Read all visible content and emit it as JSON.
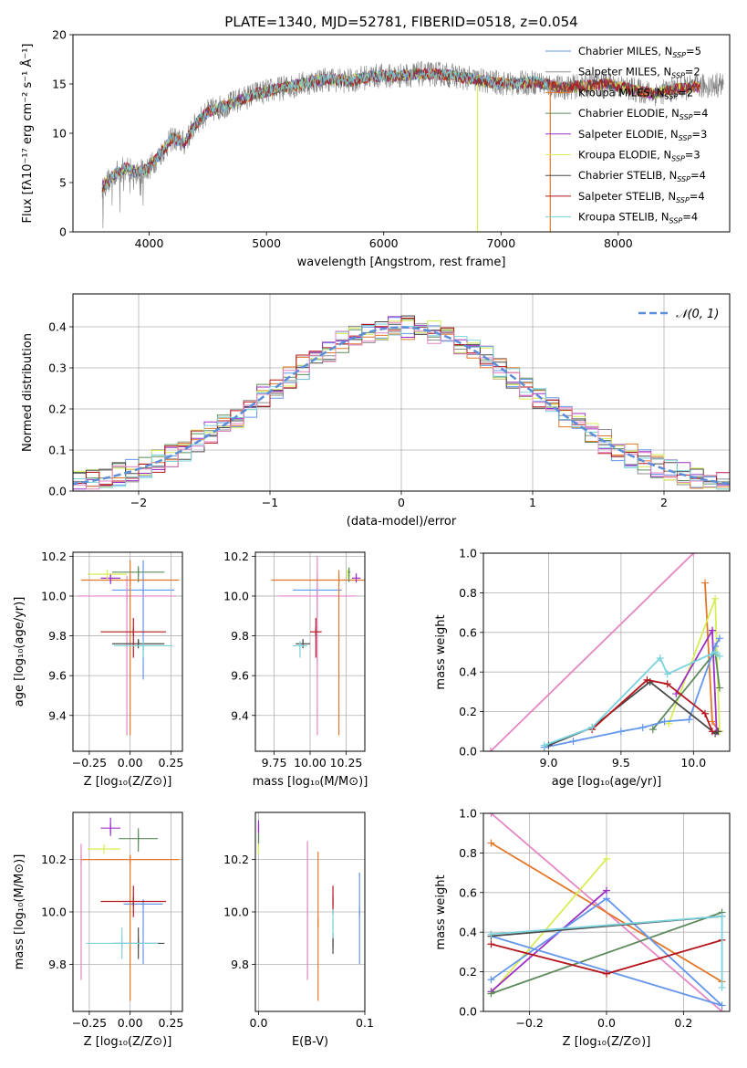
{
  "figure_title": "PLATE=1340, MJD=52781, FIBERID=0518, z=0.054",
  "chart_data": [
    {
      "id": "spectrum",
      "type": "line",
      "xlabel": "wavelength [Angstrom, rest frame]",
      "ylabel": "Flux [fλ10⁻¹⁷ erg cm⁻² s⁻¹ Å⁻¹]",
      "xlim": [
        3350,
        8950
      ],
      "ylim": [
        0,
        20
      ],
      "xticks": [
        4000,
        5000,
        6000,
        7000,
        8000
      ],
      "yticks": [
        0,
        5,
        10,
        15,
        20
      ],
      "legend_position": "top-right",
      "data_curve": {
        "color": "#808080",
        "x": [
          3600,
          3700,
          3800,
          3900,
          4000,
          4100,
          4200,
          4300,
          4400,
          4500,
          4700,
          4900,
          5100,
          5300,
          5500,
          5700,
          5900,
          6100,
          6300,
          6500,
          6700,
          6900,
          7100,
          7300,
          7500,
          7700,
          7900,
          8100,
          8300,
          8500,
          8900
        ],
        "y": [
          4.5,
          5.8,
          6.5,
          6.0,
          6.5,
          8.0,
          9.5,
          9.0,
          11.0,
          12.2,
          13.0,
          14.0,
          14.5,
          15.0,
          15.5,
          15.3,
          15.8,
          15.8,
          16.0,
          16.0,
          15.6,
          15.2,
          15.0,
          15.2,
          14.6,
          14.8,
          15.0,
          14.5,
          14.0,
          14.5,
          15.0
        ]
      },
      "series": [
        {
          "name": "Chabrier MILES, N$_{SSP}$=5",
          "color": "#6495ed"
        },
        {
          "name": "Salpeter MILES, N$_{SSP}$=2",
          "color": "#8e8e8e"
        },
        {
          "name": "Kroupa MILES, N$_{SSP}$=2",
          "color": "#e2772a"
        },
        {
          "name": "Chabrier ELODIE, N$_{SSP}$=4",
          "color": "#5c8a5c"
        },
        {
          "name": "Salpeter ELODIE, N$_{SSP}$=3",
          "color": "#9b30c6"
        },
        {
          "name": "Kroupa ELODIE, N$_{SSP}$=3",
          "color": "#d8ec54"
        },
        {
          "name": "Chabrier STELIB, N$_{SSP}$=4",
          "color": "#4a4a4a"
        },
        {
          "name": "Salpeter STELIB, N$_{SSP}$=4",
          "color": "#b5161d"
        },
        {
          "name": "Kroupa STELIB, N$_{SSP}$=4",
          "color": "#7ad3dc"
        }
      ]
    },
    {
      "id": "residuals",
      "type": "line",
      "xlabel": "(data-model)/error",
      "ylabel": "Normed distribution",
      "xlim": [
        -2.5,
        2.5
      ],
      "ylim": [
        0,
        0.48
      ],
      "xticks": [
        -2,
        -1,
        0,
        1,
        2
      ],
      "yticks": [
        0.0,
        0.1,
        0.2,
        0.3,
        0.4
      ],
      "grid": true,
      "legend_position": "top-right",
      "gaussian": {
        "name": "𝒩(0, 1)",
        "mu": 0,
        "sigma": 1,
        "color": "#5b8dd9"
      }
    },
    {
      "id": "age_vs_Z",
      "type": "scatter",
      "xlabel": "Z [log₁₀(Z/Z⊙)]",
      "ylabel": "age  [log₁₀(age/yr)]",
      "xlim": [
        -0.35,
        0.32
      ],
      "ylim": [
        9.22,
        10.22
      ],
      "xticks": [
        -0.25,
        0.0,
        0.25
      ],
      "yticks": [
        9.4,
        9.6,
        9.8,
        10.0,
        10.2
      ],
      "grid": true,
      "points": [
        {
          "x": 0.08,
          "y": 10.03,
          "xerr": 0.19,
          "yerr": [
            0.45,
            0.15
          ],
          "color": "#6495ed"
        },
        {
          "x": -0.02,
          "y": 10.0,
          "xerr": 0.3,
          "yerr": [
            0.7,
            0.1
          ],
          "color": "#e586c4"
        },
        {
          "x": 0.0,
          "y": 10.08,
          "xerr": 0.3,
          "yerr": [
            0.78,
            0.1
          ],
          "color": "#e2772a"
        },
        {
          "x": 0.05,
          "y": 10.12,
          "xerr": 0.16,
          "yerr": [
            0.05,
            0.03
          ],
          "color": "#5c8a5c"
        },
        {
          "x": -0.12,
          "y": 10.09,
          "xerr": 0.06,
          "yerr": [
            0.03,
            0.02
          ],
          "color": "#9b30c6"
        },
        {
          "x": -0.14,
          "y": 10.11,
          "xerr": 0.12,
          "yerr": [
            0.02,
            0.02
          ],
          "color": "#d8ec54"
        },
        {
          "x": 0.05,
          "y": 9.76,
          "xerr": 0.16,
          "yerr": [
            0.0,
            0.0
          ],
          "color": "#4a4a4a"
        },
        {
          "x": 0.02,
          "y": 9.82,
          "xerr": 0.2,
          "yerr": [
            0.13,
            0.07
          ],
          "color": "#b5161d"
        },
        {
          "x": 0.08,
          "y": 9.75,
          "xerr": 0.18,
          "yerr": [
            0.06,
            0.02
          ],
          "color": "#7ad3dc"
        }
      ]
    },
    {
      "id": "age_vs_mass",
      "type": "scatter",
      "xlabel": "mass [log₁₀(M/M⊙)]",
      "ylabel": "",
      "xlim": [
        9.62,
        10.38
      ],
      "ylim": [
        9.22,
        10.22
      ],
      "xticks": [
        9.75,
        10.0,
        10.25
      ],
      "yticks": [
        9.4,
        9.6,
        9.8,
        10.0,
        10.2
      ],
      "grid": true,
      "points": [
        {
          "x": 10.05,
          "y": 10.03,
          "xerr": 0.17,
          "yerr": [
            0.37,
            0.09
          ],
          "color": "#6495ed"
        },
        {
          "x": 10.05,
          "y": 10.0,
          "xerr": 0.27,
          "yerr": [
            0.7,
            0.2
          ],
          "color": "#e586c4"
        },
        {
          "x": 10.2,
          "y": 10.08,
          "xerr": 0.47,
          "yerr": [
            0.78,
            0.05
          ],
          "color": "#e2772a"
        },
        {
          "x": 10.27,
          "y": 10.12,
          "xerr": 0.01,
          "yerr": [
            0.05,
            0.02
          ],
          "color": "#5c8a5c"
        },
        {
          "x": 10.32,
          "y": 10.09,
          "xerr": 0.03,
          "yerr": [
            0.0,
            0.01
          ],
          "color": "#9b30c6"
        },
        {
          "x": 10.26,
          "y": 10.11,
          "xerr": 0.0,
          "yerr": [
            0.0,
            0.0
          ],
          "color": "#d8ec54"
        },
        {
          "x": 9.95,
          "y": 9.76,
          "xerr": 0.05,
          "yerr": [
            0.0,
            0.0
          ],
          "color": "#4a4a4a"
        },
        {
          "x": 10.04,
          "y": 9.82,
          "xerr": 0.04,
          "yerr": [
            0.13,
            0.07
          ],
          "color": "#b5161d"
        },
        {
          "x": 9.93,
          "y": 9.75,
          "xerr": 0.05,
          "yerr": [
            0.06,
            0.02
          ],
          "color": "#7ad3dc"
        }
      ]
    },
    {
      "id": "massweight_vs_age",
      "type": "line",
      "xlabel": "age  [log₁₀(age/yr)]",
      "ylabel": "mass weight",
      "xlim": [
        8.55,
        10.25
      ],
      "ylim": [
        0,
        1
      ],
      "xticks": [
        9.0,
        9.5,
        10.0
      ],
      "yticks": [
        0.0,
        0.2,
        0.4,
        0.6,
        0.8,
        1.0
      ],
      "grid": true,
      "series": [
        {
          "color": "#e586c4",
          "x": [
            8.6,
            10.0
          ],
          "y": [
            0.0,
            1.0
          ]
        },
        {
          "color": "#e2772a",
          "x": [
            10.08,
            10.13,
            10.18
          ],
          "y": [
            0.85,
            0.15,
            0.1
          ]
        },
        {
          "color": "#d8ec54",
          "x": [
            9.83,
            10.15,
            10.18
          ],
          "y": [
            0.14,
            0.77,
            0.1
          ]
        },
        {
          "color": "#9b30c6",
          "x": [
            9.88,
            10.13,
            10.16
          ],
          "y": [
            0.29,
            0.61,
            0.1
          ]
        },
        {
          "color": "#5c8a5c",
          "x": [
            9.72,
            10.15,
            10.18
          ],
          "y": [
            0.11,
            0.5,
            0.32
          ]
        },
        {
          "color": "#6495ed",
          "x": [
            8.97,
            9.17,
            9.5,
            9.65,
            9.8,
            9.97,
            10.15,
            10.18
          ],
          "y": [
            0.02,
            0.05,
            0.1,
            0.12,
            0.15,
            0.16,
            0.53,
            0.57
          ]
        },
        {
          "color": "#4a4a4a",
          "x": [
            9.0,
            9.3,
            9.7,
            10.15,
            10.17
          ],
          "y": [
            0.03,
            0.12,
            0.35,
            0.09,
            0.1
          ]
        },
        {
          "color": "#b5161d",
          "x": [
            9.3,
            9.68,
            9.82,
            10.08,
            10.13
          ],
          "y": [
            0.11,
            0.36,
            0.34,
            0.19,
            0.1
          ]
        },
        {
          "color": "#7ad3dc",
          "x": [
            8.97,
            9.3,
            9.77,
            9.82,
            10.15,
            10.18
          ],
          "y": [
            0.03,
            0.12,
            0.47,
            0.39,
            0.5,
            0.48
          ]
        }
      ]
    },
    {
      "id": "mass_vs_Z",
      "type": "scatter",
      "xlabel": "Z [log₁₀(Z/Z⊙)]",
      "ylabel": "mass [log₁₀(M/M⊙)]",
      "xlim": [
        -0.35,
        0.32
      ],
      "ylim": [
        9.62,
        10.38
      ],
      "xticks": [
        -0.25,
        0.0,
        0.25
      ],
      "yticks": [
        9.8,
        10.0,
        10.2
      ],
      "grid": true,
      "points": [
        {
          "x": 0.08,
          "y": 10.03,
          "xerr": 0.12,
          "yerr": [
            0.23,
            0.0
          ],
          "color": "#6495ed"
        },
        {
          "x": -0.3,
          "y": 10.2,
          "xerr": 0.0,
          "yerr": [
            0.46,
            0.06
          ],
          "color": "#e586c4"
        },
        {
          "x": 0.0,
          "y": 10.2,
          "xerr": 0.3,
          "yerr": [
            0.54,
            0.0
          ],
          "color": "#e2772a"
        },
        {
          "x": 0.05,
          "y": 10.28,
          "xerr": 0.12,
          "yerr": [
            0.05,
            0.04
          ],
          "color": "#5c8a5c"
        },
        {
          "x": -0.12,
          "y": 10.32,
          "xerr": 0.06,
          "yerr": [
            0.03,
            0.04
          ],
          "color": "#9b30c6"
        },
        {
          "x": -0.16,
          "y": 10.24,
          "xerr": 0.1,
          "yerr": [
            0.0,
            0.0
          ],
          "color": "#d8ec54"
        },
        {
          "x": 0.05,
          "y": 9.88,
          "xerr": 0.16,
          "yerr": [
            0.06,
            0.06
          ],
          "color": "#4a4a4a"
        },
        {
          "x": 0.02,
          "y": 10.04,
          "xerr": 0.2,
          "yerr": [
            0.06,
            0.06
          ],
          "color": "#b5161d"
        },
        {
          "x": -0.05,
          "y": 9.88,
          "xerr": 0.22,
          "yerr": [
            0.06,
            0.06
          ],
          "color": "#7ad3dc"
        }
      ]
    },
    {
      "id": "mass_vs_ebv",
      "type": "scatter",
      "xlabel": "E(B-V)",
      "ylabel": "",
      "xlim": [
        -0.003,
        0.1
      ],
      "ylim": [
        9.62,
        10.38
      ],
      "xticks": [
        0.0,
        0.1
      ],
      "yticks": [
        9.8,
        10.0,
        10.2
      ],
      "grid": true,
      "points": [
        {
          "x": 0.095,
          "y": 10.0,
          "xerr": 0,
          "yerr": [
            0.2,
            0.15
          ],
          "color": "#6495ed"
        },
        {
          "x": 0.046,
          "y": 10.0,
          "xerr": 0,
          "yerr": [
            0.26,
            0.27
          ],
          "color": "#e586c4"
        },
        {
          "x": 0.056,
          "y": 9.96,
          "xerr": 0,
          "yerr": [
            0.3,
            0.27
          ],
          "color": "#e2772a"
        },
        {
          "x": 0.0,
          "y": 10.28,
          "xerr": 0,
          "yerr": [
            0.02,
            0.02
          ],
          "color": "#5c8a5c"
        },
        {
          "x": 0.0,
          "y": 10.32,
          "xerr": 0,
          "yerr": [
            0.02,
            0.03
          ],
          "color": "#9b30c6"
        },
        {
          "x": 0.0,
          "y": 10.24,
          "xerr": 0,
          "yerr": [
            0.02,
            0.02
          ],
          "color": "#d8ec54"
        },
        {
          "x": 0.07,
          "y": 9.88,
          "xerr": 0,
          "yerr": [
            0.04,
            0.04
          ],
          "color": "#4a4a4a"
        },
        {
          "x": 0.07,
          "y": 10.04,
          "xerr": 0,
          "yerr": [
            0.05,
            0.06
          ],
          "color": "#b5161d"
        },
        {
          "x": 0.07,
          "y": 9.95,
          "xerr": 0,
          "yerr": [
            0.05,
            0.06
          ],
          "color": "#7ad3dc"
        }
      ]
    },
    {
      "id": "massweight_vs_Z",
      "type": "line",
      "xlabel": "Z [log₁₀(Z/Z⊙)]",
      "ylabel": "mass weight",
      "xlim": [
        -0.32,
        0.32
      ],
      "ylim": [
        0,
        1
      ],
      "xticks": [
        -0.2,
        0.0,
        0.2
      ],
      "yticks": [
        0.0,
        0.2,
        0.4,
        0.6,
        0.8,
        1.0
      ],
      "grid": true,
      "series": [
        {
          "color": "#e586c4",
          "x": [
            -0.3,
            0.3
          ],
          "y": [
            1.0,
            0.0
          ]
        },
        {
          "color": "#e2772a",
          "x": [
            -0.3,
            0.3
          ],
          "y": [
            0.85,
            0.15
          ]
        },
        {
          "color": "#d8ec54",
          "x": [
            -0.3,
            0.0
          ],
          "y": [
            0.09,
            0.77
          ]
        },
        {
          "color": "#9b30c6",
          "x": [
            -0.3,
            0.0
          ],
          "y": [
            0.1,
            0.61
          ]
        },
        {
          "color": "#5c8a5c",
          "x": [
            -0.3,
            0.3
          ],
          "y": [
            0.09,
            0.5
          ]
        },
        {
          "color": "#6495ed",
          "x": [
            -0.3,
            0.0,
            0.3,
            -0.3
          ],
          "y": [
            0.16,
            0.57,
            0.03,
            0.38
          ]
        },
        {
          "color": "#4a4a4a",
          "x": [
            -0.3,
            0.3
          ],
          "y": [
            0.38,
            0.48
          ]
        },
        {
          "color": "#b5161d",
          "x": [
            -0.3,
            0.0,
            0.3
          ],
          "y": [
            0.34,
            0.19,
            0.36
          ]
        },
        {
          "color": "#7ad3dc",
          "x": [
            -0.3,
            0.3,
            0.3
          ],
          "y": [
            0.39,
            0.48,
            0.12
          ]
        }
      ]
    }
  ]
}
